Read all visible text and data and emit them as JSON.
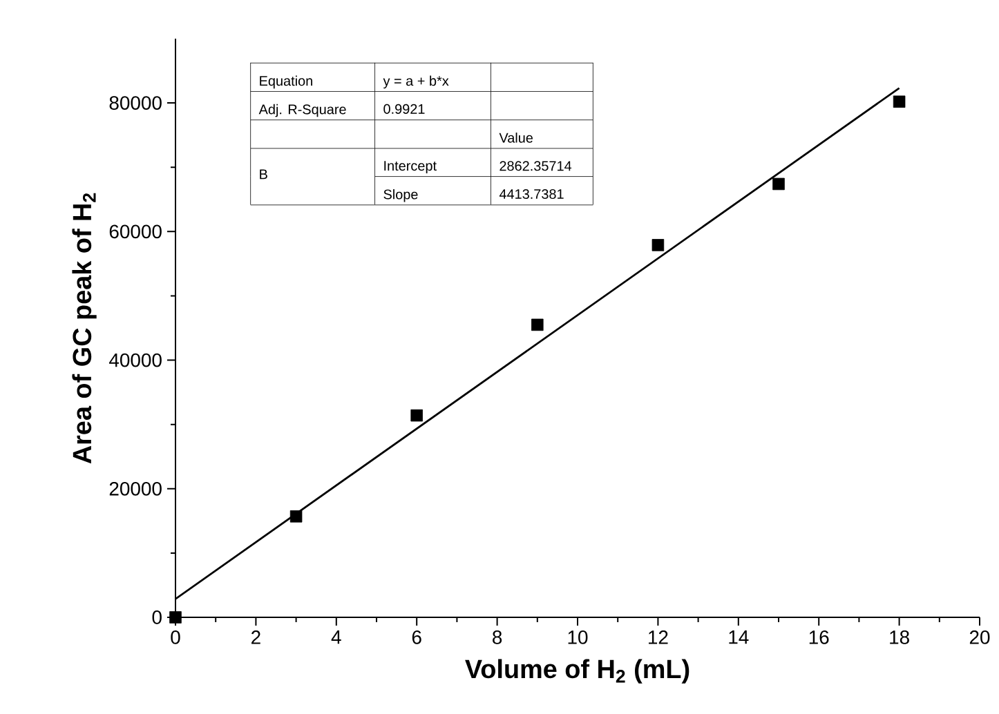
{
  "chart_data": {
    "type": "scatter",
    "xlabel": "Volume of H$_{2}$ (mL)",
    "ylabel": "Area of GC peak of H$_{2}$",
    "xlim": [
      0,
      20
    ],
    "ylim": [
      0,
      90000
    ],
    "xticks": [
      0,
      2,
      4,
      6,
      8,
      10,
      12,
      14,
      16,
      18,
      20
    ],
    "yticks": [
      0,
      20000,
      40000,
      60000,
      80000
    ],
    "grid": false,
    "series": [
      {
        "marker": "square",
        "color": "#000000",
        "x": [
          0,
          3,
          6,
          9,
          12,
          15,
          18
        ],
        "values": [
          0,
          15700,
          31400,
          45500,
          57900,
          67400,
          80200
        ]
      },
      {
        "type": "line",
        "marker": "none",
        "line_style": "solid",
        "color": "#000000",
        "x": [
          0,
          18
        ],
        "values": [
          2862,
          82310
        ]
      }
    ],
    "annotations": [
      "Equation",
      "y = a + b*x",
      "Adj. R-Square",
      "0.9921",
      "Value",
      "B",
      "Intercept",
      "2862.35714",
      "Slope",
      "4413.7381"
    ]
  }
}
